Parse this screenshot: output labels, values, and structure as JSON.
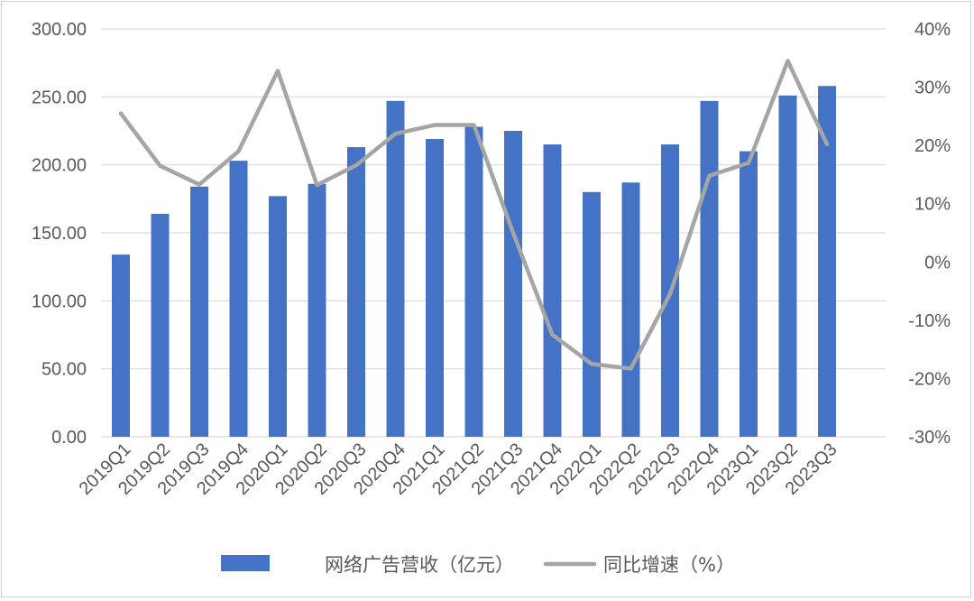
{
  "chart_data": {
    "type": "bar+line",
    "categories": [
      "2019Q1",
      "2019Q2",
      "2019Q3",
      "2019Q4",
      "2020Q1",
      "2020Q2",
      "2020Q3",
      "2020Q4",
      "2021Q1",
      "2021Q2",
      "2021Q3",
      "2021Q4",
      "2022Q1",
      "2022Q2",
      "2022Q3",
      "2022Q4",
      "2023Q1",
      "2023Q2",
      "2023Q3"
    ],
    "series": [
      {
        "name": "网络广告营收（亿元）",
        "type": "bar",
        "axis": "left",
        "color": "#4472C4",
        "values": [
          134,
          164,
          184,
          203,
          177,
          186,
          213,
          247,
          219,
          228,
          225,
          215,
          180,
          187,
          215,
          247,
          210,
          251,
          258
        ]
      },
      {
        "name": "同比增速（%）",
        "type": "line",
        "axis": "right",
        "color": "#A5A5A5",
        "values": [
          25.5,
          16.5,
          13.3,
          19.0,
          32.8,
          13.2,
          16.6,
          22.0,
          23.5,
          23.5,
          5.0,
          -12.5,
          -17.5,
          -18.3,
          -5.5,
          14.8,
          17.0,
          34.5,
          20.2
        ]
      }
    ],
    "y_left": {
      "ylim": [
        0,
        300
      ],
      "ticks": [
        "0.00",
        "50.00",
        "100.00",
        "150.00",
        "200.00",
        "250.00",
        "300.00"
      ]
    },
    "y_right": {
      "ylim": [
        -30,
        40
      ],
      "ticks": [
        "-30%",
        "-20%",
        "-10%",
        "0%",
        "10%",
        "20%",
        "30%",
        "40%"
      ]
    },
    "grid": true,
    "legend": "bottom"
  }
}
